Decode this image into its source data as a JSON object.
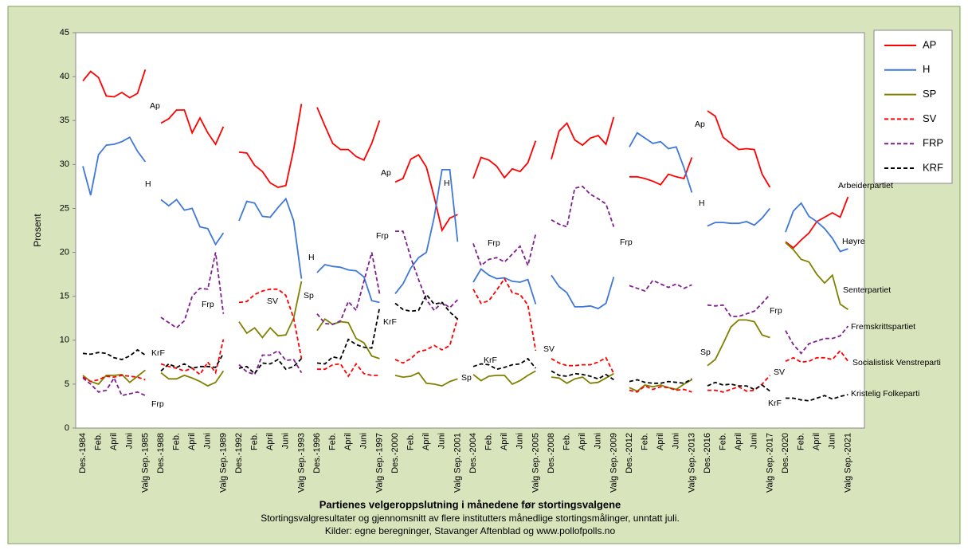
{
  "chart_data": {
    "type": "line",
    "title": "Partienes velgeroppslutning i månedene før stortingsvalgene",
    "subtitle": [
      "Stortingsvalgresultater og gjennomsnitt av flere institutters månedlige stortingsmålinger, unntatt juli.",
      "Kilder: egne beregninger, Stavanger Aftenblad og www.pollofpolls.no"
    ],
    "y_label": "Prosent",
    "ylim": [
      0,
      45
    ],
    "yticks": [
      0,
      5,
      10,
      15,
      20,
      25,
      30,
      35,
      40,
      45
    ],
    "grid": false,
    "legend": "top-right",
    "categories": [
      "Des.-1984",
      null,
      "Feb.",
      null,
      "April",
      null,
      "Juni",
      null,
      "Valg Sep.-1985",
      null,
      "Des.-1988",
      null,
      "Feb.",
      null,
      "April",
      null,
      "Juni",
      null,
      "Valg Sep.-1989",
      null,
      "Des.-1992",
      null,
      "Feb.",
      null,
      "April",
      null,
      "Juni",
      null,
      "Valg Sep.-1993",
      null,
      "Des.-1996",
      null,
      "Feb.",
      null,
      "April",
      null,
      "Juni",
      null,
      "Valg Sep.-1997",
      null,
      "Des.-2000",
      null,
      "Feb.",
      null,
      "April",
      null,
      "Juni",
      null,
      "Valg Sep.-2001",
      null,
      "Des.-2004",
      null,
      "Feb.",
      null,
      "April",
      null,
      "Juni",
      null,
      "Valg Sep.-2005",
      null,
      "Des.-2008",
      null,
      "Feb.",
      null,
      "April",
      null,
      "Juni",
      null,
      "Valg Sep.-2009",
      null,
      "Des.-2012",
      null,
      "Feb.",
      null,
      "April",
      null,
      "Juni",
      null,
      "Valg Sep.-2013",
      null,
      "Des.-2016",
      null,
      "Feb.",
      null,
      "April",
      null,
      "Juni",
      null,
      "Valg Sep.-2017",
      null,
      "Des.-2020",
      null,
      "Feb.",
      null,
      "April",
      null,
      "Juni",
      null,
      "Valg Sep.-2021"
    ],
    "series": [
      {
        "name": "AP",
        "color": "#ff0000",
        "dashed": false,
        "values": [
          39.5,
          40.6,
          39.9,
          37.8,
          37.7,
          38.2,
          37.6,
          38.1,
          40.8,
          null,
          34.7,
          35.2,
          36.2,
          36.2,
          33.6,
          35.3,
          33.6,
          32.3,
          34.3,
          null,
          31.4,
          31.3,
          29.9,
          29.2,
          27.9,
          27.4,
          27.6,
          31.7,
          36.9,
          null,
          36.5,
          34.4,
          32.4,
          31.7,
          31.7,
          30.9,
          30.5,
          32.4,
          35.0,
          null,
          28.0,
          28.4,
          30.6,
          31.1,
          29.7,
          26.3,
          22.5,
          23.9,
          24.3,
          null,
          28.4,
          30.8,
          30.5,
          29.8,
          28.5,
          29.5,
          29.2,
          30.2,
          32.7,
          null,
          30.6,
          33.8,
          34.7,
          32.8,
          32.2,
          33.0,
          33.3,
          32.3,
          35.4,
          null,
          28.6,
          28.6,
          28.4,
          28.1,
          27.7,
          28.9,
          28.6,
          28.4,
          30.8,
          null,
          36.1,
          35.5,
          33.1,
          32.4,
          31.7,
          31.8,
          31.7,
          28.9,
          27.4,
          null,
          21.2,
          20.5,
          21.4,
          22.2,
          23.5,
          24.0,
          24.5,
          24.0,
          26.3
        ]
      },
      {
        "name": "H",
        "color": "#3f78d8",
        "dashed": false,
        "values": [
          29.8,
          26.5,
          31.1,
          32.2,
          32.3,
          32.6,
          33.1,
          31.5,
          30.3,
          null,
          26.0,
          25.3,
          26.0,
          24.8,
          25.0,
          22.9,
          22.7,
          20.9,
          22.2,
          null,
          23.6,
          25.8,
          25.6,
          24.1,
          24.0,
          25.1,
          26.1,
          23.6,
          17.0,
          null,
          17.7,
          18.6,
          18.4,
          18.3,
          18.0,
          17.9,
          17.2,
          14.5,
          14.3,
          null,
          15.3,
          16.4,
          18.2,
          19.4,
          20.0,
          24.0,
          29.4,
          29.4,
          21.2,
          null,
          16.6,
          18.1,
          17.4,
          17.0,
          17.1,
          16.7,
          16.6,
          16.9,
          14.1,
          null,
          17.4,
          16.1,
          15.4,
          13.8,
          13.8,
          13.9,
          13.6,
          14.2,
          17.2,
          null,
          32.0,
          33.6,
          33.0,
          32.4,
          32.6,
          31.8,
          32.0,
          29.6,
          26.8,
          null,
          23.0,
          23.4,
          23.4,
          23.3,
          23.3,
          23.5,
          23.1,
          23.9,
          25.0,
          null,
          22.3,
          24.7,
          25.6,
          24.1,
          23.5,
          22.7,
          21.6,
          20.1,
          20.4
        ]
      },
      {
        "name": "SP",
        "color": "#808000",
        "dashed": false,
        "values": [
          6.0,
          5.3,
          5.0,
          6.0,
          6.0,
          6.1,
          5.2,
          5.9,
          6.6,
          null,
          6.3,
          5.6,
          5.6,
          6.0,
          5.7,
          5.3,
          4.8,
          5.2,
          6.5,
          null,
          12.1,
          10.8,
          11.4,
          10.3,
          11.4,
          10.5,
          10.6,
          12.5,
          16.7,
          null,
          11.1,
          12.4,
          11.8,
          12.1,
          12.0,
          10.2,
          9.7,
          8.2,
          7.9,
          null,
          6.0,
          5.8,
          5.9,
          6.3,
          5.1,
          5.0,
          4.8,
          5.3,
          5.6,
          null,
          6.1,
          5.4,
          5.9,
          6.0,
          6.0,
          5.0,
          5.4,
          6.0,
          6.5,
          null,
          5.8,
          5.7,
          5.1,
          5.6,
          5.8,
          5.1,
          5.2,
          5.7,
          6.2,
          null,
          4.6,
          4.2,
          4.9,
          4.7,
          4.9,
          4.6,
          4.4,
          5.0,
          5.5,
          null,
          7.1,
          7.8,
          9.6,
          11.5,
          12.3,
          12.3,
          12.1,
          10.6,
          10.3,
          null,
          21.1,
          20.3,
          19.2,
          18.9,
          17.5,
          16.5,
          17.4,
          14.1,
          13.5
        ]
      },
      {
        "name": "SV",
        "color": "#ff0000",
        "dashed": true,
        "values": [
          5.8,
          5.3,
          5.5,
          5.9,
          5.8,
          6.0,
          5.9,
          5.8,
          5.5,
          null,
          7.3,
          7.0,
          6.8,
          6.5,
          6.8,
          6.1,
          7.5,
          6.3,
          10.1,
          null,
          14.3,
          14.4,
          15.2,
          15.6,
          15.8,
          15.8,
          15.1,
          12.5,
          7.9,
          null,
          6.7,
          6.7,
          7.2,
          7.3,
          5.9,
          7.3,
          6.2,
          6.0,
          6.0,
          null,
          7.8,
          7.4,
          7.9,
          8.7,
          8.9,
          9.4,
          8.9,
          9.4,
          12.5,
          null,
          15.8,
          14.2,
          14.5,
          15.7,
          17.0,
          15.4,
          15.2,
          14.0,
          8.8,
          null,
          7.9,
          7.4,
          7.1,
          7.1,
          7.2,
          7.2,
          7.5,
          8.0,
          6.2,
          null,
          4.3,
          4.1,
          4.8,
          4.4,
          4.7,
          4.6,
          4.3,
          4.4,
          4.1,
          null,
          4.3,
          4.3,
          4.1,
          4.4,
          4.7,
          4.2,
          4.3,
          5.0,
          6.0,
          null,
          7.6,
          8.0,
          7.5,
          7.6,
          8.0,
          8.0,
          7.8,
          8.8,
          7.6
        ]
      },
      {
        "name": "FRP",
        "color": "#7f1f8f",
        "dashed": true,
        "values": [
          5.7,
          5.0,
          4.1,
          4.3,
          5.7,
          3.7,
          3.9,
          4.1,
          3.7,
          null,
          12.6,
          12.0,
          11.4,
          12.2,
          15.0,
          15.9,
          15.8,
          20.0,
          13.0,
          null,
          7.2,
          6.4,
          6.1,
          8.3,
          8.3,
          8.8,
          7.7,
          7.8,
          6.3,
          null,
          13.0,
          11.9,
          11.8,
          12.2,
          14.4,
          13.4,
          16.7,
          20.0,
          15.3,
          null,
          22.4,
          22.4,
          19.4,
          16.9,
          14.6,
          13.4,
          14.3,
          13.7,
          14.6,
          null,
          21.0,
          18.5,
          19.2,
          19.4,
          18.9,
          19.8,
          20.7,
          18.5,
          22.1,
          null,
          23.7,
          23.2,
          22.9,
          27.3,
          27.5,
          26.6,
          26.1,
          25.5,
          22.9,
          null,
          16.2,
          15.9,
          15.6,
          16.8,
          16.4,
          16.0,
          16.4,
          15.9,
          16.3,
          null,
          14.0,
          13.9,
          14.0,
          12.7,
          12.7,
          13.0,
          13.3,
          14.2,
          15.2,
          null,
          11.1,
          9.5,
          8.5,
          9.6,
          9.9,
          10.2,
          10.2,
          10.5,
          11.6
        ]
      },
      {
        "name": "KRF",
        "color": "#000000",
        "dashed": true,
        "values": [
          8.5,
          8.4,
          8.6,
          8.5,
          8.0,
          7.8,
          8.2,
          8.9,
          8.3,
          null,
          6.5,
          7.3,
          6.9,
          7.3,
          6.8,
          7.0,
          7.0,
          6.9,
          8.5,
          null,
          6.8,
          7.0,
          6.2,
          7.4,
          7.3,
          7.8,
          6.7,
          7.0,
          7.9,
          null,
          7.4,
          7.3,
          8.1,
          7.9,
          10.1,
          9.5,
          9.2,
          9.1,
          13.7,
          null,
          14.2,
          13.5,
          13.3,
          13.4,
          15.2,
          14.1,
          14.3,
          13.2,
          12.4,
          null,
          7.0,
          7.3,
          7.2,
          6.7,
          6.9,
          7.2,
          7.3,
          7.9,
          6.8,
          null,
          6.5,
          6.0,
          5.9,
          6.2,
          6.1,
          5.9,
          5.6,
          6.1,
          5.5,
          null,
          5.3,
          5.5,
          5.2,
          5.1,
          5.1,
          5.3,
          5.2,
          5.1,
          5.6,
          null,
          4.8,
          5.2,
          4.9,
          5.0,
          4.8,
          4.8,
          4.4,
          4.9,
          4.2,
          null,
          3.4,
          3.4,
          3.2,
          3.1,
          3.4,
          3.7,
          3.3,
          3.6,
          3.8
        ]
      }
    ],
    "annotations": [
      "Ap",
      "H",
      "KrF",
      "Frp",
      "Frp",
      "SV",
      "Sp",
      "H",
      "KrF",
      "Ap",
      "Frp",
      "H",
      "Sp",
      "Frp",
      "KrF",
      "SV",
      "Frp",
      "Ap",
      "H",
      "Sp",
      "Frp",
      "SV",
      "KrF",
      "Arbeiderpartiet",
      "Høyre",
      "Senterpartiet",
      "Fremskrittspartiet",
      "Socialistisk Venstreparti",
      "Kristelig Folkeparti"
    ]
  }
}
